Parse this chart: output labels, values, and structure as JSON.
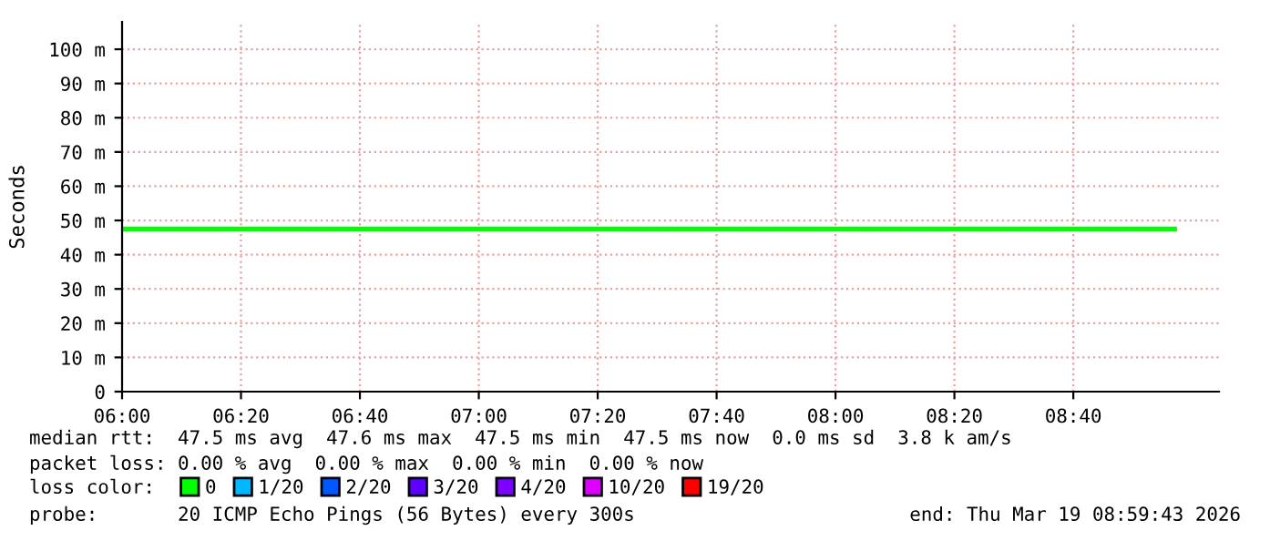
{
  "chart_data": {
    "type": "line",
    "ylabel": "Seconds",
    "xlim": [
      6.0,
      9.075
    ],
    "ylim": [
      0,
      108
    ],
    "xticks": [
      {
        "value": 6.0,
        "label": "06:00"
      },
      {
        "value": 6.3333,
        "label": "06:20"
      },
      {
        "value": 6.6667,
        "label": "06:40"
      },
      {
        "value": 7.0,
        "label": "07:00"
      },
      {
        "value": 7.3333,
        "label": "07:20"
      },
      {
        "value": 7.6667,
        "label": "07:40"
      },
      {
        "value": 8.0,
        "label": "08:00"
      },
      {
        "value": 8.3333,
        "label": "08:20"
      },
      {
        "value": 8.6667,
        "label": "08:40"
      }
    ],
    "yticks": [
      0,
      {
        "value": 10,
        "label": "10 m"
      },
      {
        "value": 20,
        "label": "20 m"
      },
      {
        "value": 30,
        "label": "30 m"
      },
      {
        "value": 40,
        "label": "40 m"
      },
      {
        "value": 50,
        "label": "50 m"
      },
      {
        "value": 60,
        "label": "60 m"
      },
      {
        "value": 70,
        "label": "70 m"
      },
      {
        "value": 80,
        "label": "80 m"
      },
      {
        "value": 90,
        "label": "90 m"
      },
      {
        "value": 100,
        "label": "100 m"
      }
    ],
    "grid": true,
    "legend": "bottom",
    "marker": "none",
    "line_style": "solid",
    "series": [
      {
        "color": "#00ff00",
        "x": [
          6.0,
          8.95
        ],
        "values": [
          47.5,
          47.5
        ]
      },
      {
        "name": "0",
        "color": "#00ff00",
        "values": [
          null
        ]
      },
      {
        "name": "1/20",
        "color": "#00b8ff",
        "values": [
          null
        ]
      },
      {
        "name": "2/20",
        "color": "#0059ff",
        "values": [
          null
        ]
      },
      {
        "name": "3/20",
        "color": "#5e00ff",
        "values": [
          null
        ]
      },
      {
        "name": "4/20",
        "color": "#7e00ff",
        "values": [
          null
        ]
      },
      {
        "name": "10/20",
        "color": "#dd00ff",
        "values": [
          null
        ]
      },
      {
        "name": "19/20",
        "color": "#ff0000",
        "values": [
          null
        ]
      }
    ],
    "annotations": [
      "median rtt:  47.5 ms avg  47.6 ms max  47.5 ms min  47.5 ms now  0.0 ms sd  3.8 k am/s",
      "packet loss: 0.00 % avg  0.00 % max  0.00 % min  0.00 % now",
      "loss color:",
      "probe:       20 ICMP Echo Pings (56 Bytes) every 300s",
      "end: Thu Mar 19 08:59:43 2026"
    ]
  }
}
